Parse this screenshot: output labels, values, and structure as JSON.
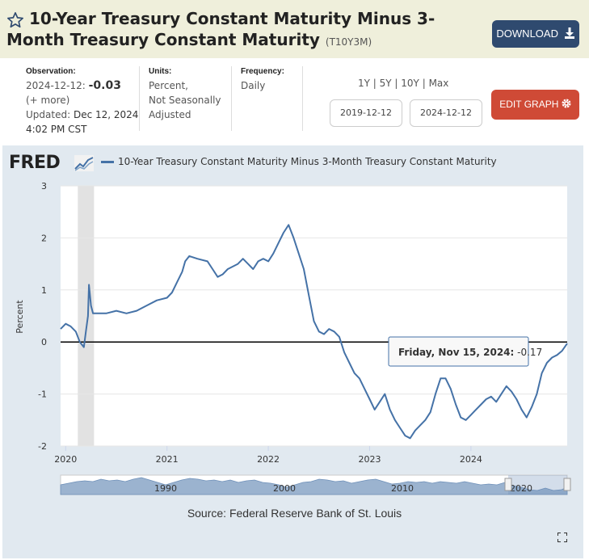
{
  "header": {
    "title": "10-Year Treasury Constant Maturity Minus 3-Month Treasury Constant Maturity",
    "series_id": "(T10Y3M)",
    "download_label": "DOWNLOAD"
  },
  "info": {
    "observation_label": "Observation:",
    "observation_date": "2024-12-12:",
    "observation_value": "-0.03",
    "more_link": "(+ more)",
    "updated_label": "Updated:",
    "updated_date": "Dec 12, 2024",
    "updated_time": "4:02 PM CST",
    "units_label": "Units:",
    "units_line1": "Percent,",
    "units_line2": "Not Seasonally",
    "units_line3": "Adjusted",
    "frequency_label": "Frequency:",
    "frequency_value": "Daily"
  },
  "controls": {
    "ranges": [
      "1Y",
      "5Y",
      "10Y",
      "Max"
    ],
    "start_date": "2019-12-12",
    "end_date": "2024-12-12",
    "edit_label": "EDIT GRAPH"
  },
  "chart": {
    "logo": "FRED",
    "legend": "10-Year Treasury Constant Maturity Minus 3-Month Treasury Constant Maturity",
    "tooltip_date": "Friday, Nov 15, 2024:",
    "tooltip_value": "-0.17",
    "navigator_labels": [
      "1990",
      "2000",
      "2010",
      "2020"
    ],
    "source": "Source: Federal Reserve Bank of St. Louis"
  },
  "colors": {
    "line": "#4572a7",
    "header_bg": "#efefdb",
    "panel_bg": "#e1e9f0",
    "download_bg": "#2f4a6f",
    "edit_bg": "#cf4a36"
  },
  "chart_data": {
    "type": "line",
    "title": "10-Year Treasury Constant Maturity Minus 3-Month Treasury Constant Maturity",
    "xlabel": "",
    "ylabel": "Percent",
    "ylim": [
      -2,
      3
    ],
    "xlim": [
      2019.95,
      2024.95
    ],
    "x_ticks": [
      2020,
      2021,
      2022,
      2023,
      2024
    ],
    "x_tick_labels": [
      "2020",
      "2021",
      "2022",
      "2023",
      "2024"
    ],
    "y_ticks": [
      -2,
      -1,
      0,
      1,
      2,
      3
    ],
    "y_tick_labels": [
      "-2",
      "-1",
      "0",
      "1",
      "2",
      "3"
    ],
    "recession_shading": [
      [
        2020.12,
        2020.28
      ]
    ],
    "series": [
      {
        "name": "T10Y3M",
        "x": [
          2019.95,
          2020.0,
          2020.05,
          2020.1,
          2020.14,
          2020.18,
          2020.2,
          2020.22,
          2020.23,
          2020.25,
          2020.27,
          2020.32,
          2020.4,
          2020.5,
          2020.6,
          2020.7,
          2020.8,
          2020.9,
          2021.0,
          2021.05,
          2021.1,
          2021.15,
          2021.18,
          2021.22,
          2021.3,
          2021.4,
          2021.45,
          2021.5,
          2021.55,
          2021.6,
          2021.7,
          2021.75,
          2021.8,
          2021.85,
          2021.9,
          2021.95,
          2022.0,
          2022.05,
          2022.1,
          2022.15,
          2022.2,
          2022.25,
          2022.3,
          2022.35,
          2022.4,
          2022.45,
          2022.5,
          2022.55,
          2022.6,
          2022.65,
          2022.7,
          2022.75,
          2022.8,
          2022.85,
          2022.9,
          2022.95,
          2023.0,
          2023.05,
          2023.1,
          2023.15,
          2023.2,
          2023.25,
          2023.3,
          2023.35,
          2023.4,
          2023.45,
          2023.5,
          2023.55,
          2023.6,
          2023.65,
          2023.7,
          2023.75,
          2023.8,
          2023.85,
          2023.9,
          2023.95,
          2024.0,
          2024.05,
          2024.1,
          2024.15,
          2024.2,
          2024.25,
          2024.3,
          2024.35,
          2024.4,
          2024.45,
          2024.5,
          2024.55,
          2024.6,
          2024.65,
          2024.7,
          2024.75,
          2024.8,
          2024.85,
          2024.9,
          2024.95
        ],
        "values": [
          0.25,
          0.35,
          0.3,
          0.2,
          0.0,
          -0.1,
          0.2,
          0.5,
          1.1,
          0.7,
          0.55,
          0.55,
          0.55,
          0.6,
          0.55,
          0.6,
          0.7,
          0.8,
          0.85,
          0.95,
          1.15,
          1.35,
          1.55,
          1.65,
          1.6,
          1.55,
          1.4,
          1.25,
          1.3,
          1.4,
          1.5,
          1.6,
          1.5,
          1.4,
          1.55,
          1.6,
          1.55,
          1.7,
          1.9,
          2.1,
          2.25,
          2.0,
          1.7,
          1.4,
          0.9,
          0.4,
          0.2,
          0.15,
          0.25,
          0.2,
          0.1,
          -0.2,
          -0.4,
          -0.6,
          -0.7,
          -0.9,
          -1.1,
          -1.3,
          -1.15,
          -1.0,
          -1.3,
          -1.5,
          -1.65,
          -1.8,
          -1.85,
          -1.7,
          -1.6,
          -1.5,
          -1.35,
          -1.0,
          -0.7,
          -0.7,
          -0.9,
          -1.2,
          -1.45,
          -1.5,
          -1.4,
          -1.3,
          -1.2,
          -1.1,
          -1.05,
          -1.15,
          -1.0,
          -0.85,
          -0.95,
          -1.1,
          -1.3,
          -1.45,
          -1.25,
          -1.0,
          -0.6,
          -0.4,
          -0.3,
          -0.25,
          -0.17,
          -0.03
        ]
      }
    ]
  }
}
